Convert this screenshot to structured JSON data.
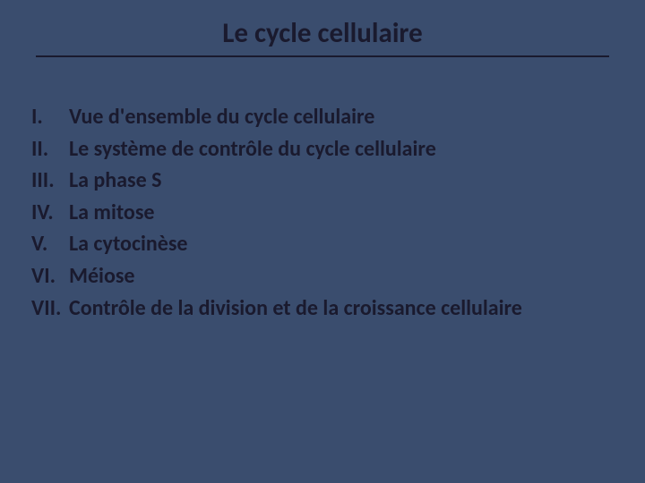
{
  "slide": {
    "background_color": "#3a4d6e",
    "text_color": "#1a1a2e",
    "title": "Le cycle cellulaire",
    "title_fontsize": 31,
    "item_fontsize": 24,
    "underline_color": "#1a1a2e",
    "items": [
      {
        "numeral": "I.",
        "text": "Vue d'ensemble du cycle cellulaire"
      },
      {
        "numeral": "II.",
        "text": "Le système de contrôle du cycle cellulaire"
      },
      {
        "numeral": "III.",
        "text": "La phase S"
      },
      {
        "numeral": "IV.",
        "text": "La mitose"
      },
      {
        "numeral": "V.",
        "text": "La cytocinèse"
      },
      {
        "numeral": "VI.",
        "text": "Méiose"
      },
      {
        "numeral": "VII.",
        "text": "Contrôle de la division et de la croissance cellulaire"
      }
    ]
  }
}
